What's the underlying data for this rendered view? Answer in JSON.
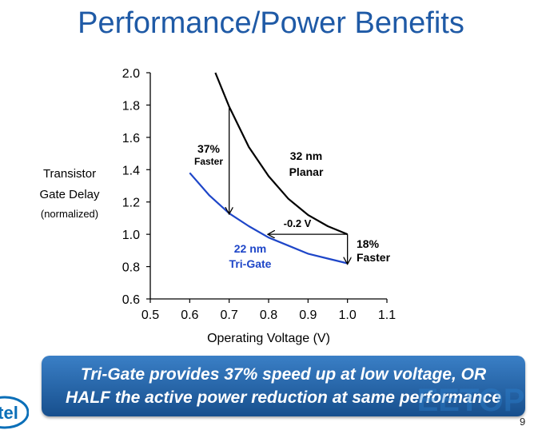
{
  "slide": {
    "title": "Performance/Power Benefits",
    "banner_line1": "Tri-Gate provides 37% speed up at low voltage, OR",
    "banner_line2": "HALF the active power reduction at same performance",
    "page_number": "9",
    "logo_text": "tel",
    "watermark_text": "EETOP"
  },
  "chart_data": {
    "type": "line",
    "xlabel": "Operating Voltage (V)",
    "ylabel": [
      "Transistor",
      "Gate Delay",
      "(normalized)"
    ],
    "xlim": [
      0.5,
      1.1
    ],
    "ylim": [
      0.6,
      2.0
    ],
    "xticks": [
      "0.5",
      "0.6",
      "0.7",
      "0.8",
      "0.9",
      "1.0",
      "1.1"
    ],
    "yticks": [
      "0.6",
      "0.8",
      "1.0",
      "1.2",
      "1.4",
      "1.6",
      "1.8",
      "2.0"
    ],
    "grid": false,
    "series": [
      {
        "name": "32 nm Planar",
        "label_lines": [
          "32 nm",
          "Planar"
        ],
        "color": "#000000",
        "x": [
          0.665,
          0.7,
          0.75,
          0.8,
          0.85,
          0.9,
          0.95,
          1.0
        ],
        "y": [
          2.0,
          1.79,
          1.54,
          1.36,
          1.22,
          1.12,
          1.05,
          1.0
        ]
      },
      {
        "name": "22 nm Tri-Gate",
        "label_lines": [
          "22 nm",
          "Tri-Gate"
        ],
        "color": "#1e46c8",
        "x": [
          0.6,
          0.65,
          0.7,
          0.75,
          0.8,
          0.85,
          0.9,
          0.95,
          1.0
        ],
        "y": [
          1.38,
          1.24,
          1.13,
          1.05,
          0.98,
          0.93,
          0.88,
          0.85,
          0.82
        ]
      }
    ],
    "annotations": [
      {
        "lines": [
          "37%",
          "Faster"
        ],
        "from": [
          0.7,
          1.79
        ],
        "to": [
          0.7,
          1.13
        ]
      },
      {
        "lines": [
          "-0.2 V"
        ],
        "from": [
          1.0,
          1.0
        ],
        "to": [
          0.8,
          1.0
        ]
      },
      {
        "lines": [
          "18%",
          "Faster"
        ],
        "from": [
          1.0,
          1.0
        ],
        "to": [
          1.0,
          0.82
        ]
      }
    ]
  }
}
